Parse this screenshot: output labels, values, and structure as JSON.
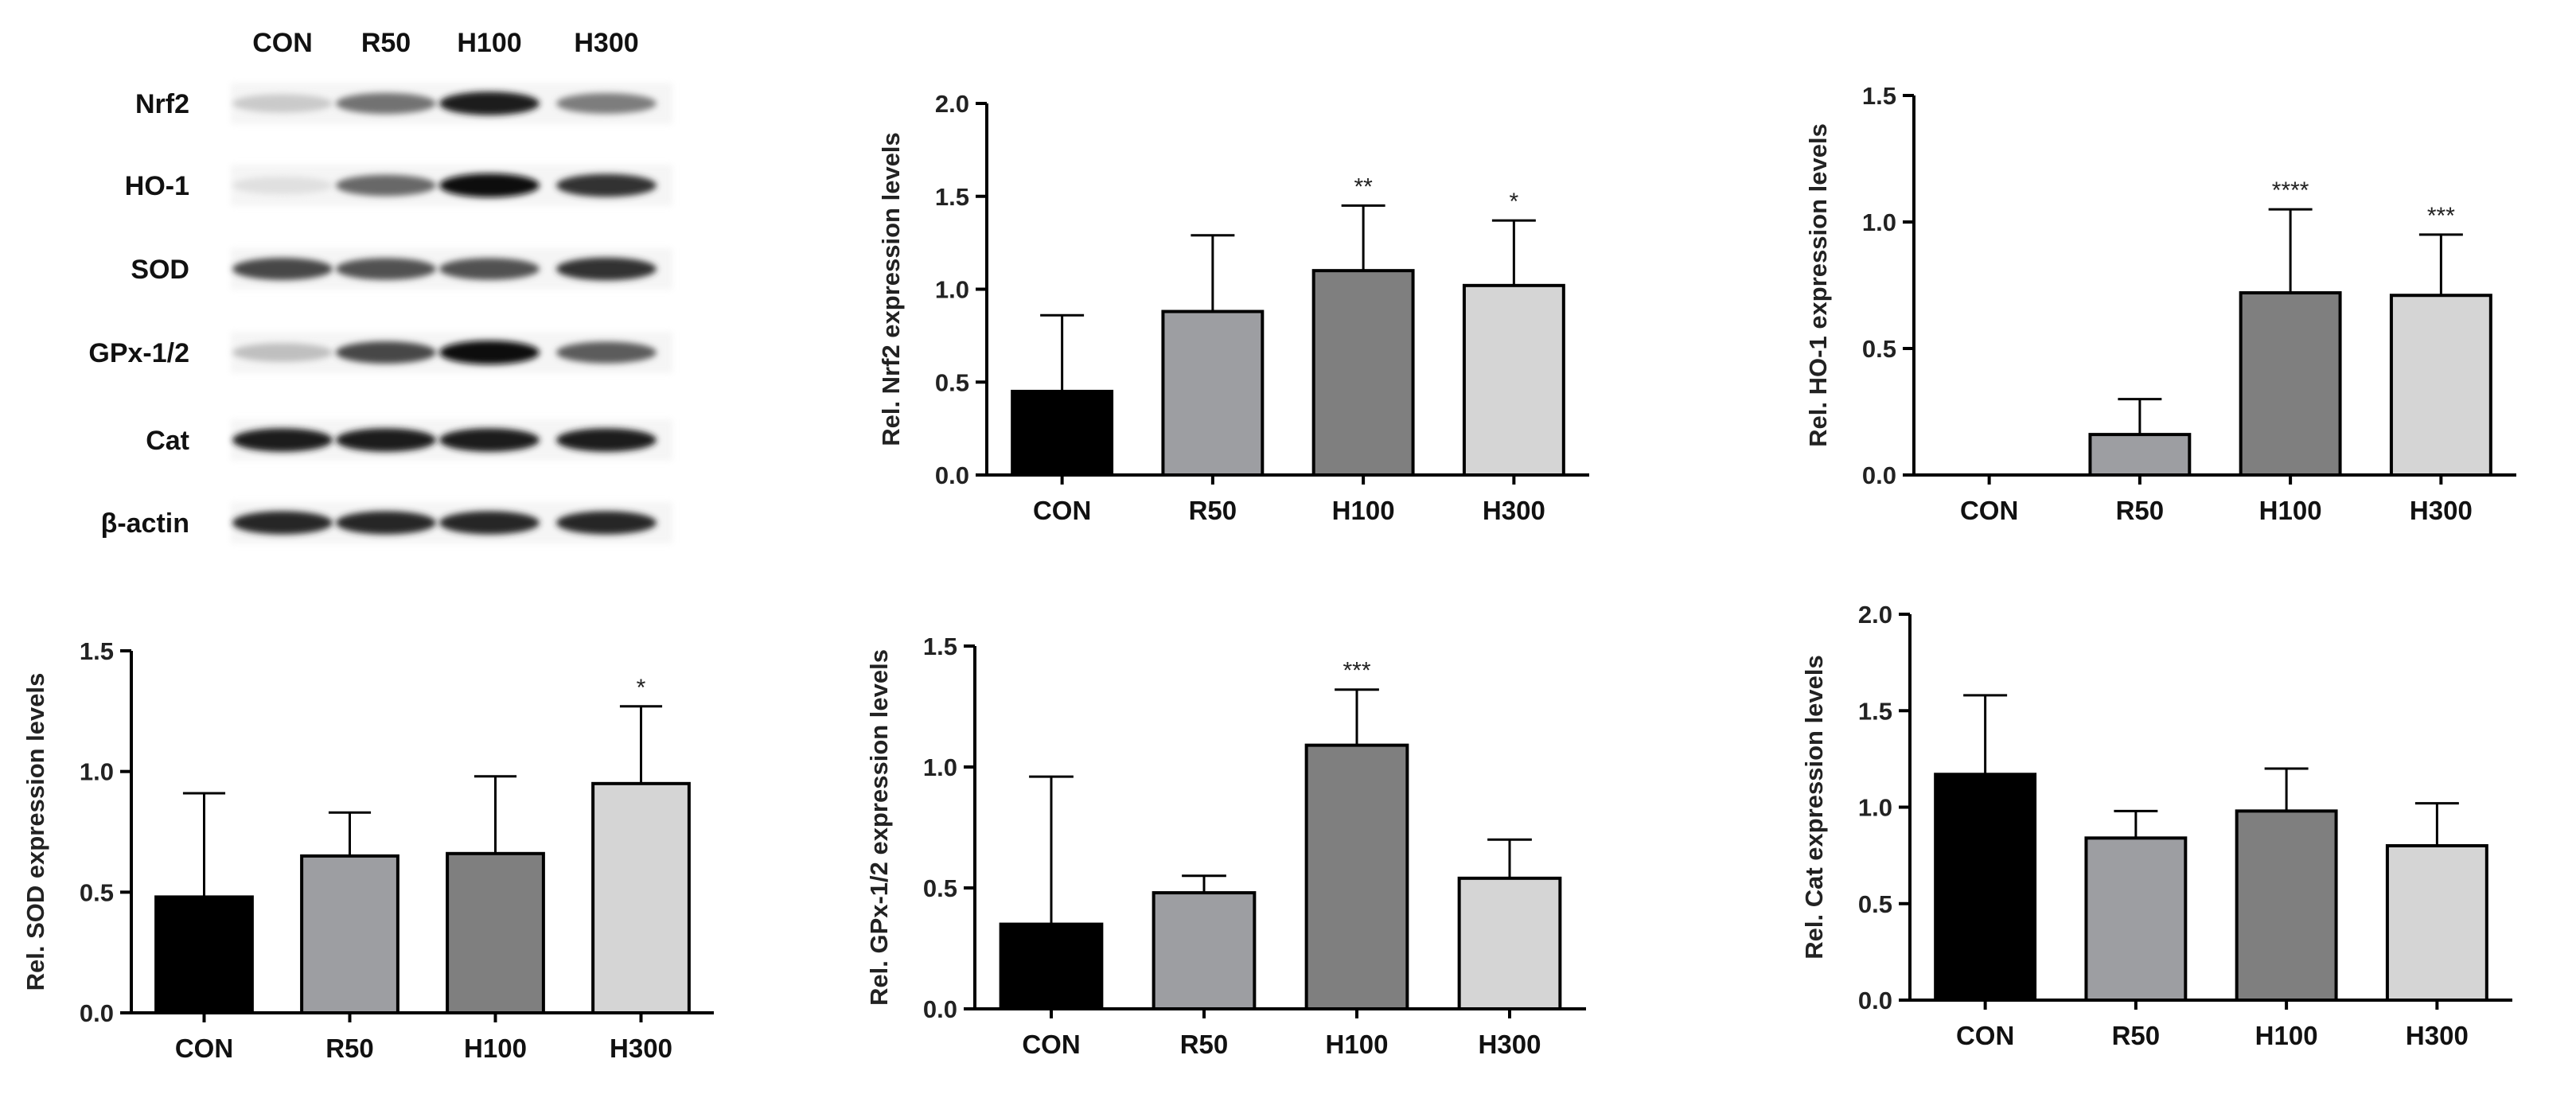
{
  "colors": {
    "CON": "#000000",
    "R50": "#9d9ea2",
    "H100": "#7f7f7f",
    "H300": "#d5d5d5",
    "axis": "#000000"
  },
  "blot": {
    "columns": [
      "CON",
      "R50",
      "H100",
      "H300"
    ],
    "rows": [
      {
        "label": "Nrf2",
        "intensity": [
          0.15,
          0.55,
          0.95,
          0.5
        ]
      },
      {
        "label": "HO-1",
        "intensity": [
          0.05,
          0.6,
          1.0,
          0.85
        ]
      },
      {
        "label": "SOD",
        "intensity": [
          0.75,
          0.7,
          0.7,
          0.85
        ]
      },
      {
        "label": "GPx-1/2",
        "intensity": [
          0.2,
          0.75,
          1.0,
          0.65
        ]
      },
      {
        "label": "Cat",
        "intensity": [
          0.95,
          0.95,
          0.95,
          0.95
        ]
      },
      {
        "label": "β-actin",
        "intensity": [
          0.9,
          0.9,
          0.9,
          0.9
        ]
      }
    ]
  },
  "chart_data": [
    {
      "id": "nrf2",
      "type": "bar",
      "ylabel": "Rel. Nrf2 expression levels",
      "categories": [
        "CON",
        "R50",
        "H100",
        "H300"
      ],
      "values": [
        0.45,
        0.88,
        1.1,
        1.02
      ],
      "errors": [
        0.41,
        0.41,
        0.35,
        0.35
      ],
      "significance": [
        "",
        "",
        "**",
        "*"
      ],
      "ylim": [
        0,
        2.0
      ],
      "yticks": [
        0.0,
        0.5,
        1.0,
        1.5,
        2.0
      ],
      "yticklabels": [
        "0.0",
        "0.5",
        "1.0",
        "1.5",
        "2.0"
      ]
    },
    {
      "id": "ho1",
      "type": "bar",
      "ylabel": "Rel. HO-1 expression levels",
      "categories": [
        "CON",
        "R50",
        "H100",
        "H300"
      ],
      "values": [
        0.0,
        0.16,
        0.72,
        0.71
      ],
      "errors": [
        0.0,
        0.14,
        0.33,
        0.24
      ],
      "significance": [
        "",
        "",
        "****",
        "***"
      ],
      "ylim": [
        0,
        1.5
      ],
      "yticks": [
        0.0,
        0.5,
        1.0,
        1.5
      ],
      "yticklabels": [
        "0.0",
        "0.5",
        "1.0",
        "1.5"
      ]
    },
    {
      "id": "sod",
      "type": "bar",
      "ylabel": "Rel. SOD expression levels",
      "categories": [
        "CON",
        "R50",
        "H100",
        "H300"
      ],
      "values": [
        0.48,
        0.65,
        0.66,
        0.95
      ],
      "errors": [
        0.43,
        0.18,
        0.32,
        0.32
      ],
      "significance": [
        "",
        "",
        "",
        "*"
      ],
      "ylim": [
        0,
        1.5
      ],
      "yticks": [
        0.0,
        0.5,
        1.0,
        1.5
      ],
      "yticklabels": [
        "0.0",
        "0.5",
        "1.0",
        "1.5"
      ]
    },
    {
      "id": "gpx",
      "type": "bar",
      "ylabel": "Rel. GPx-1/2 expression levels",
      "categories": [
        "CON",
        "R50",
        "H100",
        "H300"
      ],
      "values": [
        0.35,
        0.48,
        1.09,
        0.54
      ],
      "errors": [
        0.61,
        0.07,
        0.23,
        0.16
      ],
      "significance": [
        "",
        "",
        "***",
        ""
      ],
      "ylim": [
        0,
        1.5
      ],
      "yticks": [
        0.0,
        0.5,
        1.0,
        1.5
      ],
      "yticklabels": [
        "0.0",
        "0.5",
        "1.0",
        "1.5"
      ]
    },
    {
      "id": "cat",
      "type": "bar",
      "ylabel": "Rel. Cat expression levels",
      "categories": [
        "CON",
        "R50",
        "H100",
        "H300"
      ],
      "values": [
        1.17,
        0.84,
        0.98,
        0.8
      ],
      "errors": [
        0.41,
        0.14,
        0.22,
        0.22
      ],
      "significance": [
        "",
        "",
        "",
        ""
      ],
      "ylim": [
        0,
        2.0
      ],
      "yticks": [
        0.0,
        0.5,
        1.0,
        1.5,
        2.0
      ],
      "yticklabels": [
        "0.0",
        "0.5",
        "1.0",
        "1.5",
        "2.0"
      ]
    }
  ]
}
